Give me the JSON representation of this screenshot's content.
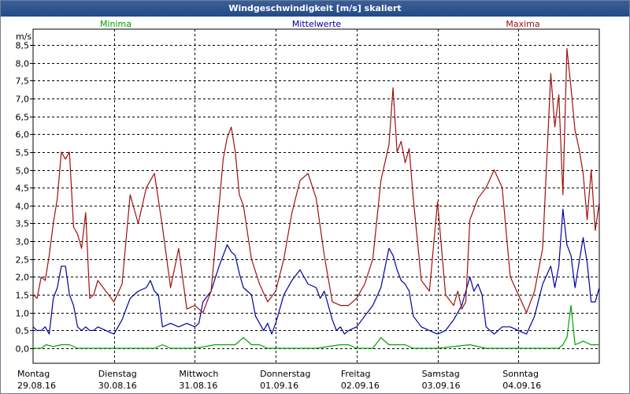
{
  "window": {
    "title": "Windgeschwindigkeit [m/s] skaliert"
  },
  "chart_data": {
    "type": "line",
    "title": "Windgeschwindigkeit [m/s] skaliert",
    "ylabel": "m/s",
    "ylim": [
      0,
      8.5
    ],
    "y_ticks": [
      "0,0",
      "0,5",
      "1,0",
      "1,5",
      "2,0",
      "2,5",
      "3,0",
      "3,5",
      "4,0",
      "4,5",
      "5,0",
      "5,5",
      "6,0",
      "6,5",
      "7,0",
      "7,5",
      "8,0",
      "8,5"
    ],
    "x_range_days": [
      0,
      7
    ],
    "x_categories": [
      {
        "day": "Montag",
        "date": "29.08.16"
      },
      {
        "day": "Dienstag",
        "date": "30.08.16"
      },
      {
        "day": "Mittwoch",
        "date": "31.08.16"
      },
      {
        "day": "Donnerstag",
        "date": "01.09.16"
      },
      {
        "day": "Freitag",
        "date": "02.09.16"
      },
      {
        "day": "Samstag",
        "date": "03.09.16"
      },
      {
        "day": "Sonntag",
        "date": "04.09.16"
      }
    ],
    "series": [
      {
        "name": "Minima",
        "color": "#00a000",
        "x": [
          0,
          0.1,
          0.16,
          0.25,
          0.35,
          0.45,
          0.55,
          1.0,
          1.5,
          1.6,
          1.7,
          2.0,
          2.25,
          2.5,
          2.6,
          2.7,
          2.8,
          2.9,
          3.1,
          3.5,
          3.8,
          3.9,
          4.0,
          4.2,
          4.3,
          4.4,
          4.6,
          4.7,
          5.0,
          5.4,
          5.6,
          5.7,
          5.9,
          6.0,
          6.1,
          6.2,
          6.3,
          6.5,
          6.55,
          6.6,
          6.65,
          6.7,
          6.8,
          6.9,
          7.0
        ],
        "values": [
          0.0,
          0.0,
          0.1,
          0.05,
          0.1,
          0.1,
          0.0,
          0.0,
          0.0,
          0.1,
          0.0,
          0.0,
          0.1,
          0.1,
          0.3,
          0.1,
          0.1,
          0.0,
          0.0,
          0.0,
          0.1,
          0.1,
          0.0,
          0.0,
          0.3,
          0.1,
          0.1,
          0.0,
          0.0,
          0.1,
          0.0,
          0.0,
          0.0,
          0.0,
          0.0,
          0.0,
          0.0,
          0.0,
          0.1,
          0.3,
          1.2,
          0.1,
          0.2,
          0.1,
          0.1
        ]
      },
      {
        "name": "Mittelwerte",
        "color": "#0000a0",
        "x": [
          0,
          0.05,
          0.1,
          0.15,
          0.2,
          0.25,
          0.3,
          0.35,
          0.4,
          0.45,
          0.5,
          0.55,
          0.6,
          0.65,
          0.7,
          0.75,
          0.8,
          0.9,
          1.0,
          1.1,
          1.2,
          1.3,
          1.4,
          1.45,
          1.5,
          1.55,
          1.6,
          1.7,
          1.8,
          1.9,
          2.0,
          2.05,
          2.1,
          2.2,
          2.3,
          2.4,
          2.45,
          2.5,
          2.55,
          2.6,
          2.65,
          2.7,
          2.75,
          2.8,
          2.85,
          2.9,
          2.95,
          3.0,
          3.1,
          3.2,
          3.3,
          3.4,
          3.5,
          3.55,
          3.6,
          3.65,
          3.7,
          3.75,
          3.8,
          3.85,
          3.9,
          4.0,
          4.1,
          4.2,
          4.3,
          4.4,
          4.45,
          4.5,
          4.55,
          4.6,
          4.65,
          4.7,
          4.8,
          4.9,
          5.0,
          5.1,
          5.2,
          5.3,
          5.4,
          5.45,
          5.5,
          5.55,
          5.6,
          5.7,
          5.8,
          5.9,
          6.0,
          6.1,
          6.2,
          6.3,
          6.4,
          6.45,
          6.5,
          6.55,
          6.6,
          6.65,
          6.7,
          6.75,
          6.8,
          6.85,
          6.9,
          6.95,
          7.0
        ],
        "values": [
          0.6,
          0.5,
          0.5,
          0.6,
          0.4,
          1.4,
          1.7,
          2.3,
          2.3,
          1.5,
          1.2,
          0.6,
          0.5,
          0.6,
          0.5,
          0.5,
          0.6,
          0.5,
          0.4,
          0.8,
          1.4,
          1.6,
          1.7,
          1.9,
          1.6,
          1.5,
          0.6,
          0.7,
          0.6,
          0.7,
          0.6,
          0.7,
          1.3,
          1.6,
          2.3,
          2.9,
          2.7,
          2.6,
          2.1,
          1.7,
          1.6,
          1.5,
          0.9,
          0.7,
          0.5,
          0.7,
          0.4,
          0.7,
          1.5,
          1.9,
          2.2,
          1.8,
          1.7,
          1.4,
          1.6,
          1.2,
          0.8,
          0.5,
          0.6,
          0.4,
          0.5,
          0.6,
          0.9,
          1.2,
          1.7,
          2.8,
          2.6,
          2.2,
          1.9,
          1.8,
          1.6,
          0.9,
          0.6,
          0.5,
          0.4,
          0.5,
          0.8,
          1.2,
          2.0,
          1.6,
          1.8,
          1.5,
          0.6,
          0.4,
          0.6,
          0.6,
          0.5,
          0.4,
          0.9,
          1.8,
          2.3,
          1.7,
          2.3,
          3.9,
          2.9,
          2.6,
          1.7,
          2.4,
          3.1,
          2.4,
          1.3,
          1.3,
          1.7
        ]
      },
      {
        "name": "Maxima",
        "color": "#a01010",
        "x": [
          0,
          0.05,
          0.1,
          0.15,
          0.2,
          0.25,
          0.3,
          0.35,
          0.4,
          0.45,
          0.5,
          0.55,
          0.6,
          0.65,
          0.7,
          0.75,
          0.8,
          0.9,
          1.0,
          1.1,
          1.2,
          1.3,
          1.4,
          1.5,
          1.6,
          1.7,
          1.8,
          1.9,
          2.0,
          2.1,
          2.2,
          2.3,
          2.35,
          2.4,
          2.45,
          2.5,
          2.55,
          2.6,
          2.7,
          2.8,
          2.9,
          3.0,
          3.1,
          3.2,
          3.3,
          3.4,
          3.5,
          3.6,
          3.7,
          3.8,
          3.9,
          4.0,
          4.1,
          4.2,
          4.3,
          4.4,
          4.45,
          4.5,
          4.55,
          4.6,
          4.65,
          4.7,
          4.8,
          4.9,
          5.0,
          5.1,
          5.2,
          5.25,
          5.3,
          5.35,
          5.4,
          5.5,
          5.6,
          5.7,
          5.8,
          5.9,
          6.0,
          6.1,
          6.2,
          6.3,
          6.35,
          6.4,
          6.45,
          6.5,
          6.55,
          6.6,
          6.65,
          6.7,
          6.75,
          6.8,
          6.85,
          6.9,
          6.95,
          7.0
        ],
        "values": [
          1.5,
          1.4,
          2.0,
          1.9,
          2.6,
          3.5,
          4.2,
          5.5,
          5.3,
          5.5,
          3.4,
          3.2,
          2.8,
          3.8,
          1.4,
          1.5,
          1.9,
          1.6,
          1.3,
          1.8,
          4.3,
          3.5,
          4.5,
          4.9,
          3.4,
          1.7,
          2.8,
          1.1,
          1.2,
          1.0,
          1.6,
          4.0,
          5.3,
          5.9,
          6.2,
          5.5,
          4.3,
          4.0,
          2.5,
          1.8,
          1.3,
          1.6,
          2.5,
          3.8,
          4.7,
          4.9,
          4.2,
          2.6,
          1.3,
          1.2,
          1.2,
          1.4,
          1.8,
          2.5,
          4.7,
          5.7,
          7.3,
          5.5,
          5.8,
          5.2,
          5.6,
          4.2,
          1.9,
          1.6,
          4.1,
          1.5,
          1.2,
          1.6,
          1.1,
          1.3,
          3.6,
          4.2,
          4.5,
          5.0,
          4.5,
          2.0,
          1.5,
          1.0,
          1.6,
          2.8,
          5.2,
          7.7,
          6.2,
          7.1,
          4.3,
          8.4,
          7.3,
          6.1,
          5.6,
          4.9,
          3.6,
          5.0,
          3.3,
          4.1
        ]
      }
    ]
  }
}
